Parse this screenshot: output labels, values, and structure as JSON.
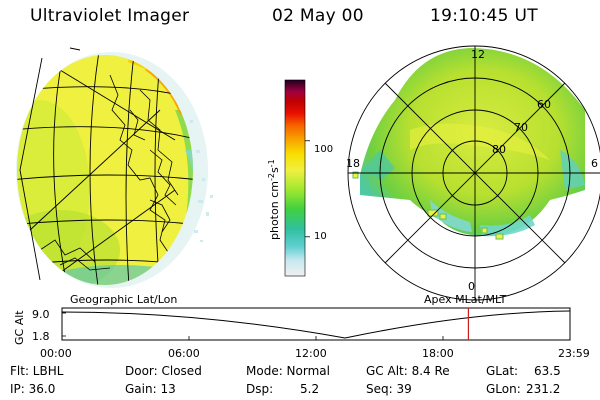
{
  "header": {
    "instrument": "Ultraviolet Imager",
    "date": "02 May 00",
    "time": "19:10:45 UT"
  },
  "colorbar": {
    "unit": "photon cm",
    "unit_exp1": "-2",
    "unit_s": "s",
    "unit_exp2": "-1",
    "ticks": [
      "100",
      "10"
    ],
    "levels": [
      {
        "value": 100,
        "fraction": 0.69
      },
      {
        "value": 10,
        "fraction": 0.2
      }
    ],
    "colors": [
      "#f0f0f0",
      "#c8e8f0",
      "#60d0d0",
      "#30c0a0",
      "#40d040",
      "#a0e830",
      "#f0f040",
      "#f8e000",
      "#f8a000",
      "#f86000",
      "#e81000",
      "#c00000",
      "#a00040",
      "#600040",
      "#200020"
    ]
  },
  "geo_panel": {
    "label": "Geographic Lat/Lon"
  },
  "polar_panel": {
    "label": "Apex MLat/MLT",
    "mlt_labels": [
      "12",
      "18",
      "6",
      "0"
    ],
    "lat_labels": [
      "60",
      "70",
      "80"
    ]
  },
  "altitude_plot": {
    "ylabel": "GC Alt",
    "yticks": [
      "9.0",
      "1.8"
    ],
    "xticks": [
      "00:00",
      "06:00",
      "12:00",
      "18:00",
      "23:59"
    ],
    "current_time_fraction": 0.8
  },
  "status": {
    "flt": "Flt: LBHL",
    "ip": "IP: 36.0",
    "door": "Door: Closed",
    "gain": "Gain: 13",
    "mode": "Mode: Normal",
    "dsp_label": "Dsp:",
    "dsp_value": "5.2",
    "gc_alt": "GC Alt: 8.4 Re",
    "seq": "Seq: 39",
    "glat_label": "GLat:",
    "glat_value": "63.5",
    "glon_label": "GLon:",
    "glon_value": "231.2"
  },
  "colors": {
    "image_base": "#f0f040",
    "image_green": "#a0e830",
    "image_hot": "#e04000",
    "marker": "#cc2020"
  }
}
